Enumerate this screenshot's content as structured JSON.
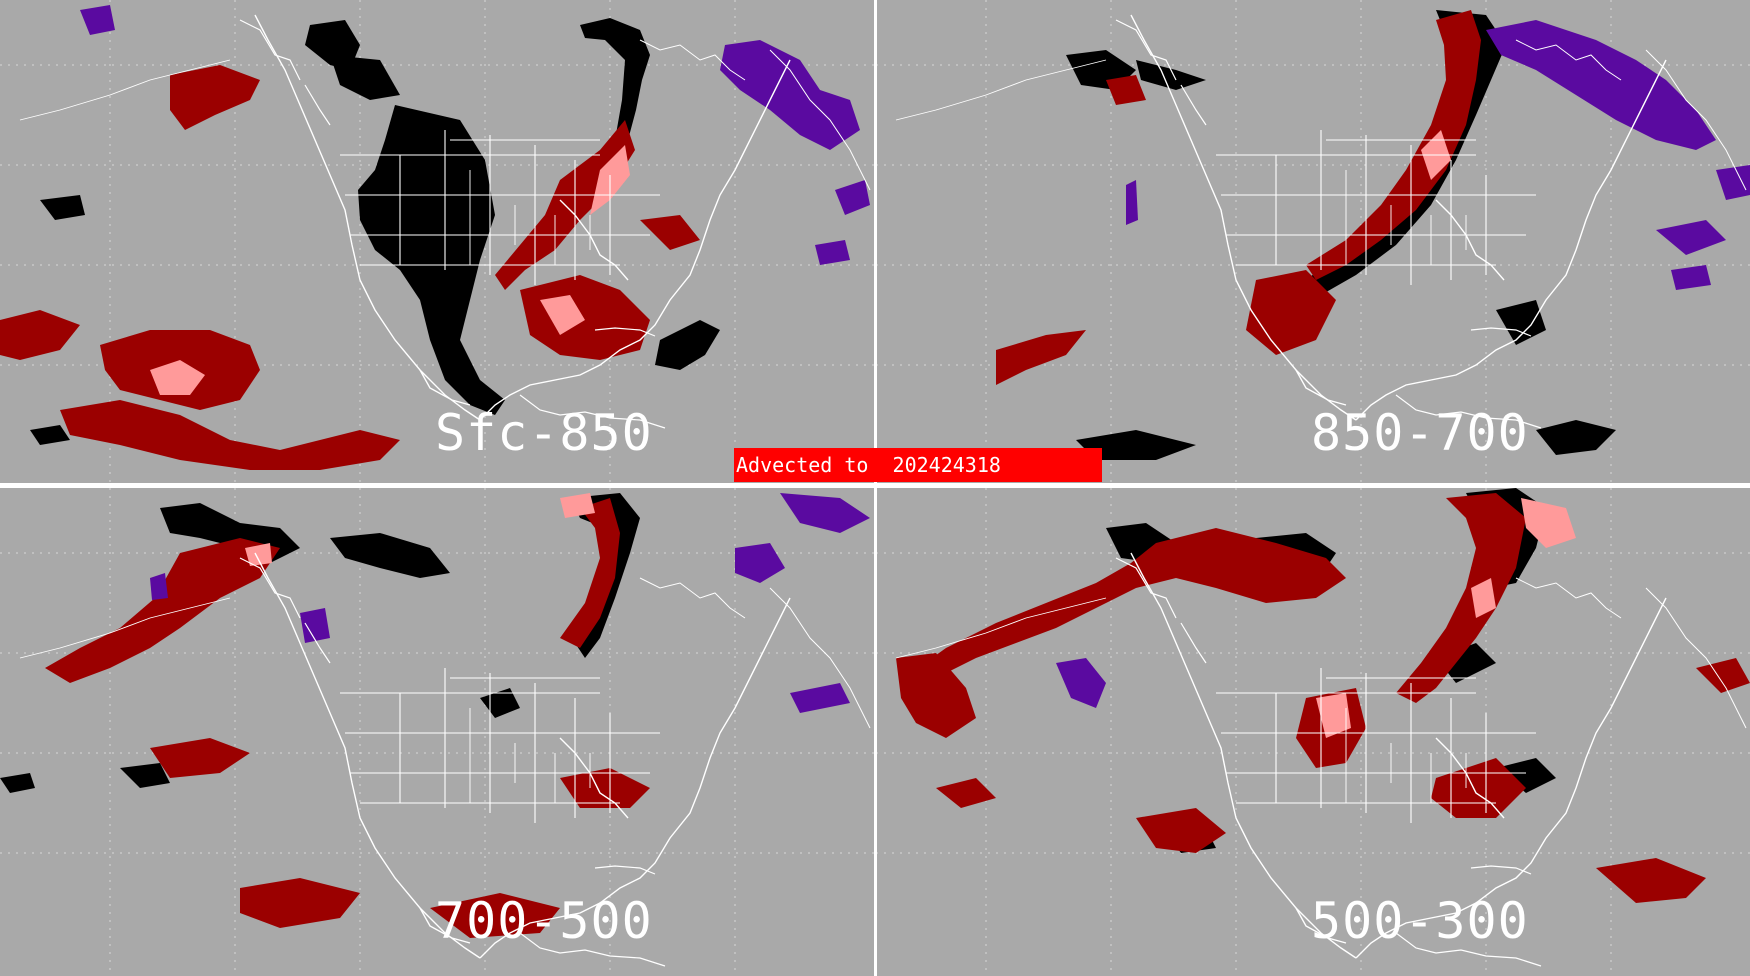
{
  "panels": [
    {
      "label": "Sfc-850"
    },
    {
      "label": "850-700"
    },
    {
      "label": "700-500"
    },
    {
      "label": "500-300"
    }
  ],
  "banner": {
    "text": "Advected to  202424318"
  },
  "colors": {
    "ocean": "#a9a9a9",
    "coastline": "#ffffff",
    "gridline": "#d8d8d8",
    "divider": "#ffffff",
    "dark_red": "#9b0000",
    "pink": "#ff9a9a",
    "black": "#000000",
    "purple": "#5a0aa0",
    "banner": "#ff0000"
  }
}
